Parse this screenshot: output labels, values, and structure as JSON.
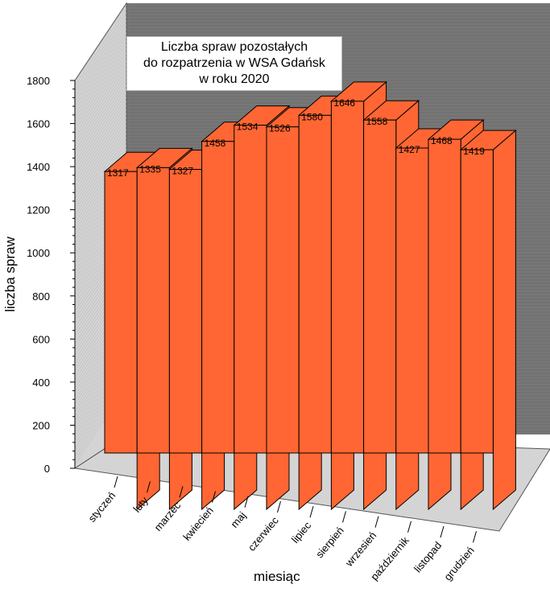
{
  "chart_data": {
    "type": "bar",
    "title": [
      "Liczba spraw pozostałych",
      "do rozpatrzenia w  WSA Gdańsk",
      "w roku 2020"
    ],
    "xlabel": "miesiąc",
    "ylabel": "liczba spraw",
    "categories": [
      "styczeń",
      "luty",
      "marzec",
      "kwiecień",
      "maj",
      "czerwiec",
      "lipiec",
      "sierpień",
      "wrzesień",
      "październik",
      "listopad",
      "grudzień"
    ],
    "values": [
      1317,
      1335,
      1327,
      1458,
      1534,
      1526,
      1580,
      1646,
      1558,
      1427,
      1468,
      1419
    ],
    "ylim": [
      0,
      1800
    ],
    "yticks": [
      0,
      200,
      400,
      600,
      800,
      1000,
      1200,
      1400,
      1600,
      1800
    ],
    "legend": "none",
    "grid": false,
    "colors": {
      "bar": "#ff6633",
      "back_wall": "#777777",
      "side_wall": "#d4d4d4",
      "floor": "#d4d4d4"
    }
  }
}
